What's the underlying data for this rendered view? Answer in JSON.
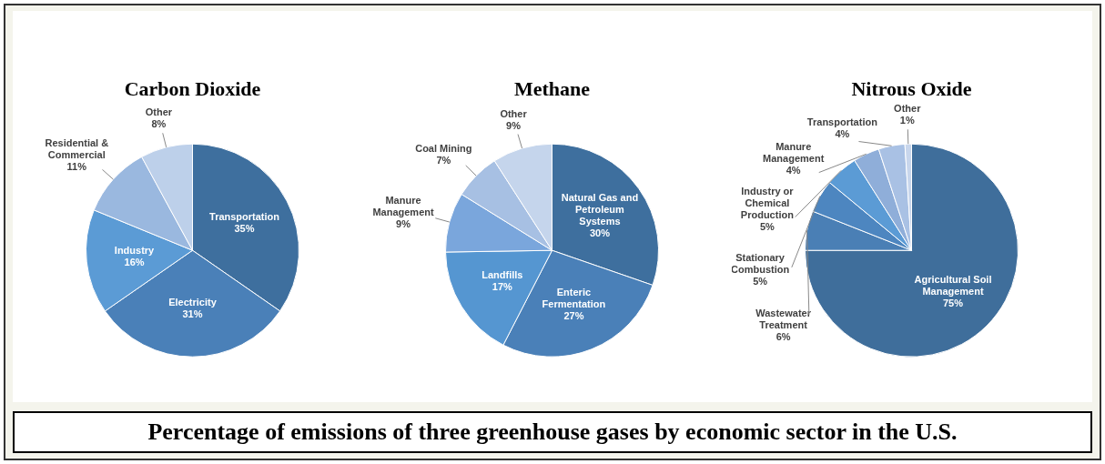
{
  "chart_data": [
    {
      "type": "pie",
      "title": "Carbon Dioxide",
      "categories": [
        "Transportation",
        "Electricity",
        "Industry",
        "Residential & Commercial",
        "Other"
      ],
      "values": [
        35,
        31,
        16,
        11,
        8
      ],
      "value_labels": [
        "35%",
        "31%",
        "16%",
        "11%",
        "8%"
      ],
      "colors": [
        "#3e6f9e",
        "#4a80b8",
        "#5b9bd5",
        "#9ab8df",
        "#bdd0ea"
      ],
      "legend": false,
      "annotations": [
        "Percentage of emissions of three greenhouse gases by economic sector in the U.S."
      ]
    },
    {
      "type": "pie",
      "title": "Methane",
      "categories": [
        "Natural Gas and Petroleum Systems",
        "Enteric Fermentation",
        "Landfills",
        "Manure Management",
        "Coal Mining",
        "Other"
      ],
      "values": [
        30,
        27,
        17,
        9,
        7,
        9
      ],
      "value_labels": [
        "30%",
        "27%",
        "17%",
        "9%",
        "7%",
        "9%"
      ],
      "colors": [
        "#3e6f9e",
        "#4a80b8",
        "#5596d1",
        "#7aa6dc",
        "#a7c0e3",
        "#c5d5ec"
      ],
      "legend": false
    },
    {
      "type": "pie",
      "title": "Nitrous Oxide",
      "categories": [
        "Agricultural Soil Management",
        "Wastewater Treatment",
        "Stationary Combustion",
        "Industry or Chemical Production",
        "Manure Management",
        "Transportation",
        "Other"
      ],
      "values": [
        75,
        6,
        5,
        5,
        4,
        4,
        1
      ],
      "value_labels": [
        "75%",
        "6%",
        "5%",
        "5%",
        "4%",
        "4%",
        "1%"
      ],
      "colors": [
        "#3f6e9b",
        "#4a7fb5",
        "#4d86c0",
        "#5b9bd5",
        "#8faed9",
        "#a9c1e4",
        "#c8d6ec"
      ],
      "legend": false
    }
  ]
}
